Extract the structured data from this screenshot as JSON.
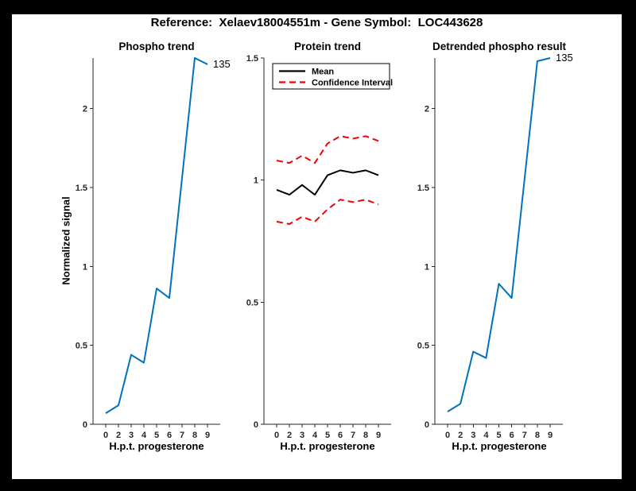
{
  "figure": {
    "title": "Reference:  Xelaev18004551m - Gene Symbol:  LOC443628",
    "background": "#ffffff",
    "frame_color": "#000000"
  },
  "colors": {
    "blue": "#0072BD",
    "red": "#F40000",
    "black": "#000000",
    "axis": "#262626",
    "tick_label": "#262626",
    "plot_background": "#ffffff"
  },
  "chart_data": [
    {
      "id": "phospho-trend",
      "type": "line",
      "title": "Phospho trend",
      "xlabel": "H.p.t. progesterone",
      "ylabel": "Normalized signal",
      "categories": [
        "0",
        "2",
        "3",
        "4",
        "5",
        "6",
        "7",
        "8",
        "9"
      ],
      "ylim": [
        0,
        2.32
      ],
      "yticks": [
        "0",
        "0.5",
        "1",
        "1.5",
        "2"
      ],
      "grid": false,
      "series": [
        {
          "name": "phospho-signal",
          "color_key": "blue",
          "dash": false,
          "values": [
            0.07,
            0.12,
            0.44,
            0.39,
            0.86,
            0.8,
            1.56,
            2.32,
            2.28
          ]
        }
      ],
      "annotation": {
        "text": "135"
      }
    },
    {
      "id": "protein-trend",
      "type": "line",
      "title": "Protein trend",
      "xlabel": "H.p.t. progesterone",
      "ylabel": "",
      "categories": [
        "0",
        "2",
        "3",
        "4",
        "5",
        "6",
        "7",
        "8",
        "9"
      ],
      "ylim": [
        0,
        1.5
      ],
      "yticks": [
        "0",
        "0.5",
        "1",
        "1.5"
      ],
      "grid": false,
      "series": [
        {
          "name": "mean",
          "color_key": "black",
          "dash": false,
          "values": [
            0.96,
            0.94,
            0.98,
            0.94,
            1.02,
            1.04,
            1.03,
            1.04,
            1.02
          ]
        },
        {
          "name": "confidence-interval-upper",
          "color_key": "red",
          "dash": true,
          "values": [
            1.08,
            1.07,
            1.1,
            1.07,
            1.15,
            1.18,
            1.17,
            1.18,
            1.16
          ]
        },
        {
          "name": "confidence-interval-lower",
          "color_key": "red",
          "dash": true,
          "values": [
            0.83,
            0.82,
            0.85,
            0.83,
            0.88,
            0.92,
            0.91,
            0.92,
            0.9
          ]
        }
      ],
      "legend": {
        "position": "top-left",
        "entries": [
          {
            "label": "Mean",
            "color_key": "black",
            "dash": false
          },
          {
            "label": "Confidence Interval",
            "color_key": "red",
            "dash": true
          }
        ]
      }
    },
    {
      "id": "detrended-phospho-result",
      "type": "line",
      "title": "Detrended phospho result",
      "xlabel": "H.p.t. progesterone",
      "ylabel": "",
      "categories": [
        "0",
        "2",
        "3",
        "4",
        "5",
        "6",
        "7",
        "8",
        "9"
      ],
      "ylim": [
        0,
        2.32
      ],
      "yticks": [
        "0",
        "0.5",
        "1",
        "1.5",
        "2"
      ],
      "grid": false,
      "series": [
        {
          "name": "detrended-signal",
          "color_key": "blue",
          "dash": false,
          "values": [
            0.08,
            0.13,
            0.46,
            0.42,
            0.89,
            0.8,
            1.55,
            2.3,
            2.32
          ]
        }
      ],
      "annotation": {
        "text": "135"
      }
    }
  ]
}
